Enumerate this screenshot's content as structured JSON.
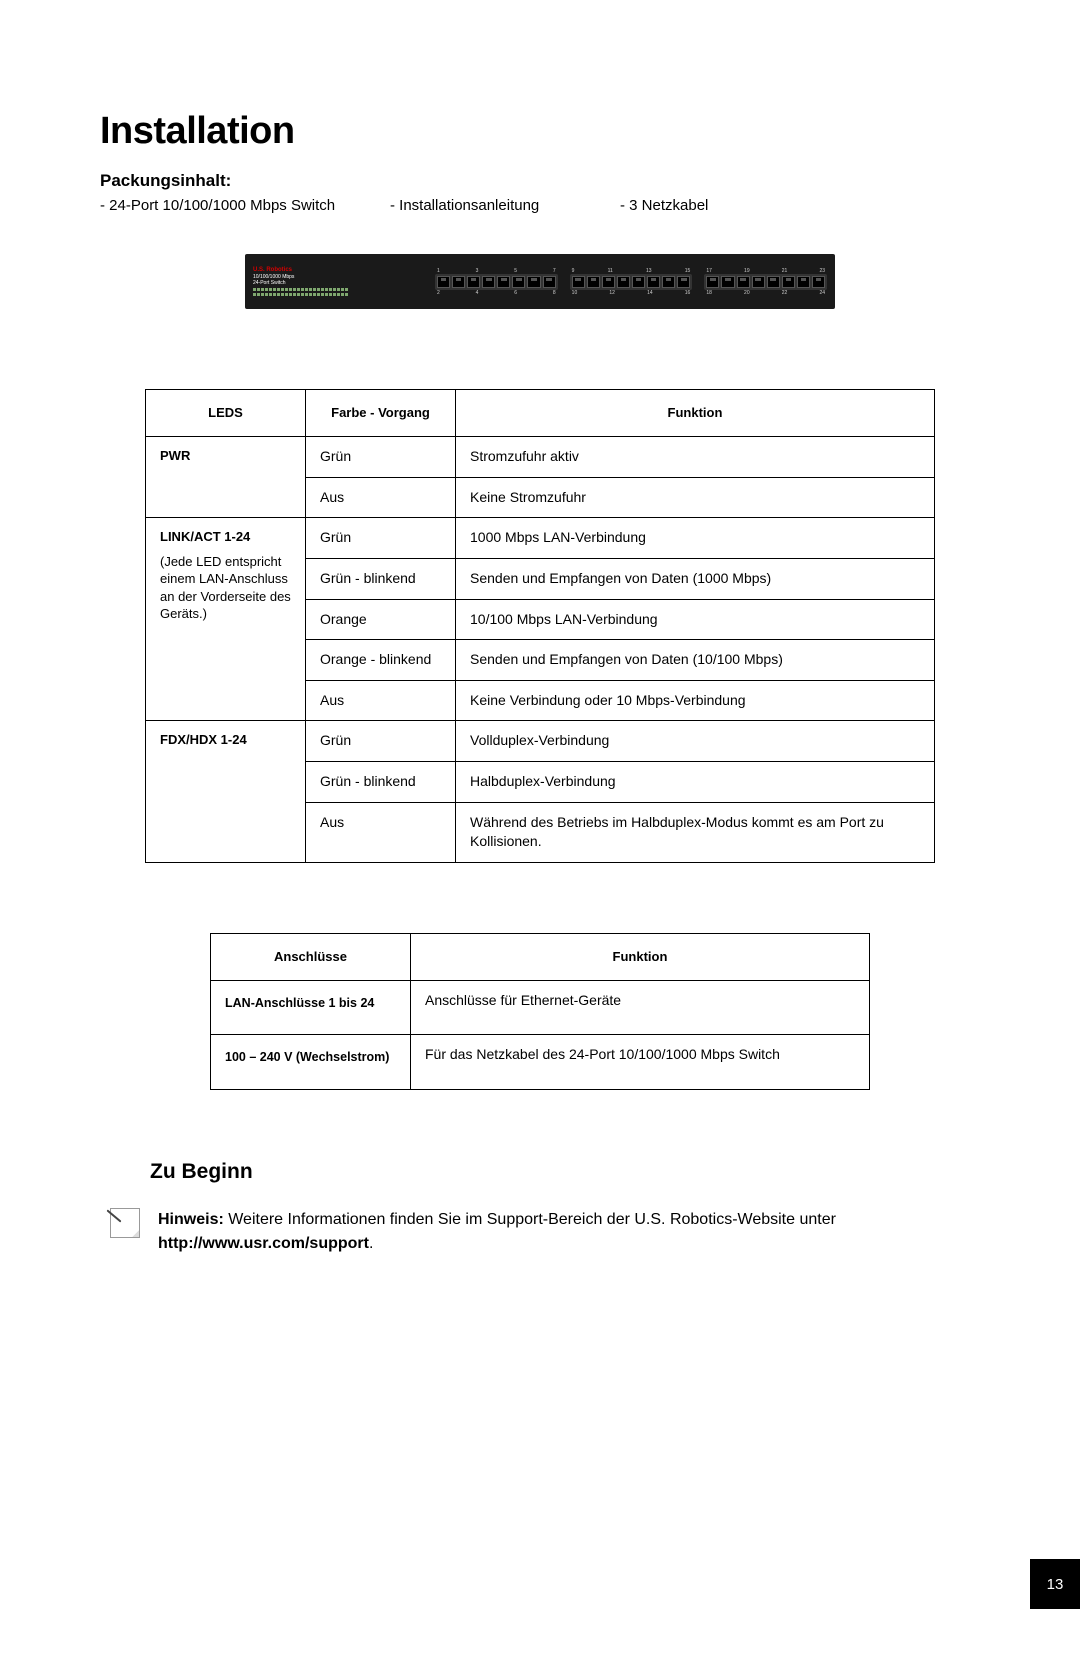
{
  "page": {
    "title": "Installation",
    "number": "13"
  },
  "packaging": {
    "heading": "Packungsinhalt:",
    "items": [
      "- 24-Port 10/100/1000 Mbps Switch",
      "- Installationsanleitung",
      "- 3 Netzkabel"
    ]
  },
  "product_image": {
    "brand": "U.S. Robotics",
    "line1": "10/100/1000 Mbps",
    "line2": "24-Port Switch",
    "port_tops": [
      "1",
      "3",
      "5",
      "7",
      "9",
      "11",
      "13",
      "15",
      "17",
      "19",
      "21",
      "23"
    ],
    "port_bots": [
      "2",
      "4",
      "6",
      "8",
      "10",
      "12",
      "14",
      "16",
      "18",
      "20",
      "22",
      "24"
    ],
    "colors": {
      "body": "#1a1a1a",
      "brand": "#d40000",
      "led": "#7fa86f",
      "port_bg": "#333333",
      "port": "#000000",
      "port_border": "#555555",
      "label": "#cccccc"
    }
  },
  "leds_table": {
    "headers": [
      "LEDS",
      "Farbe - Vorgang",
      "Funktion"
    ],
    "groups": [
      {
        "label": "PWR",
        "note": "",
        "rows": [
          {
            "color": "Grün",
            "func": "Stromzufuhr aktiv"
          },
          {
            "color": "Aus",
            "func": "Keine Stromzufuhr"
          }
        ]
      },
      {
        "label": "LINK/ACT 1-24",
        "note": "(Jede LED entspricht einem LAN-Anschluss an der Vorderseite des Geräts.)",
        "rows": [
          {
            "color": "Grün",
            "func": "1000 Mbps LAN-Verbindung"
          },
          {
            "color": "Grün - blinkend",
            "func": "Senden und Empfangen von Daten (1000 Mbps)"
          },
          {
            "color": "Orange",
            "func": "10/100 Mbps LAN-Verbindung"
          },
          {
            "color": "Orange - blinkend",
            "func": "Senden und Empfangen von Daten (10/100 Mbps)"
          },
          {
            "color": "Aus",
            "func": "Keine Verbindung oder 10 Mbps-Verbindung"
          }
        ]
      },
      {
        "label": "FDX/HDX 1-24",
        "note": "",
        "rows": [
          {
            "color": "Grün",
            "func": "Vollduplex-Verbindung"
          },
          {
            "color": "Grün - blinkend",
            "func": "Halbduplex-Verbindung"
          },
          {
            "color": "Aus",
            "func": "Während des Betriebs im Halbduplex-Modus kommt es am Port zu Kollisionen."
          }
        ]
      }
    ]
  },
  "anschluss_table": {
    "headers": [
      "Anschlüsse",
      "Funktion"
    ],
    "rows": [
      {
        "label": "LAN-Anschlüsse 1 bis 24",
        "func": "Anschlüsse für Ethernet-Geräte"
      },
      {
        "label": "100 – 240 V (Wechselstrom)",
        "func": "Für das Netzkabel des 24-Port 10/100/1000 Mbps Switch"
      }
    ]
  },
  "begin": {
    "heading": "Zu Beginn",
    "note_label": "Hinweis:",
    "note_text_1": " Weitere Informationen finden Sie im Support-Bereich der U.S. Robotics-Website unter ",
    "note_url": "http://www.usr.com/support",
    "note_text_2": "."
  },
  "style": {
    "page_bg": "#ffffff",
    "text": "#000000",
    "h1_size_pt": 29,
    "body_size_pt": 11,
    "table_border": "#000000",
    "pagenum_bg": "#000000",
    "pagenum_fg": "#ffffff"
  }
}
